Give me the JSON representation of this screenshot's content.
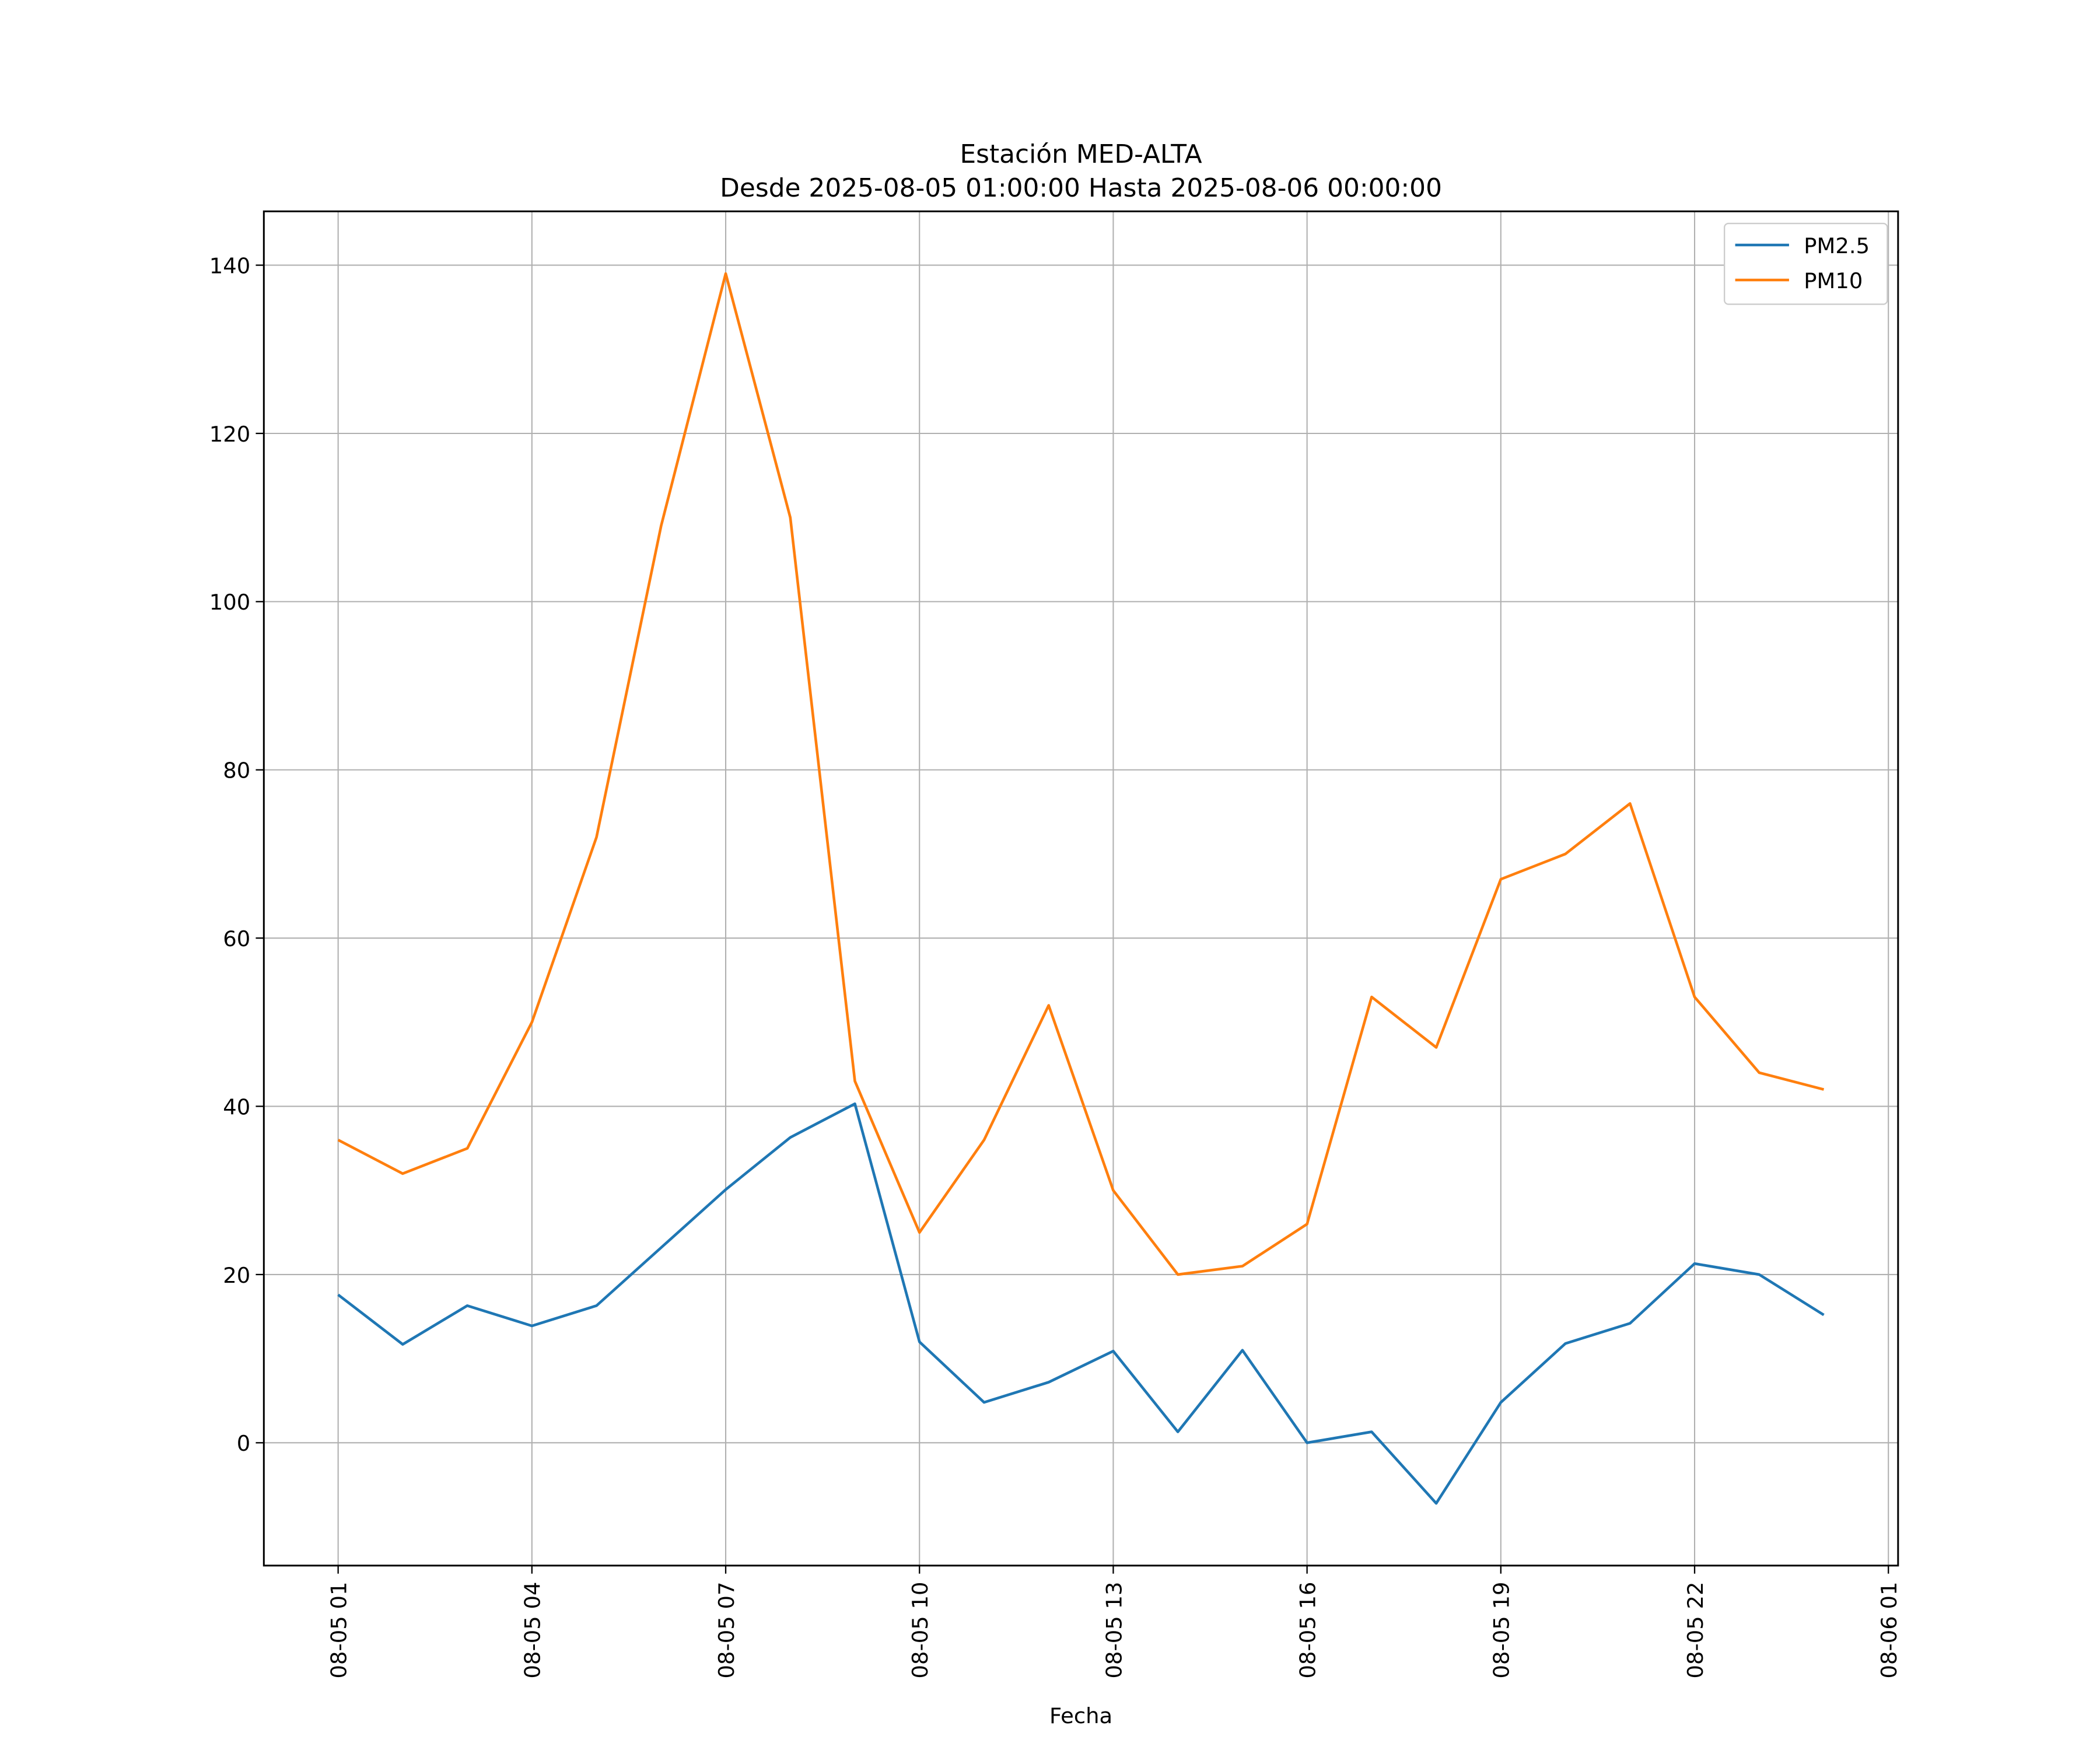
{
  "chart_data": {
    "type": "line",
    "title": "Estación MED-ALTA",
    "subtitle": "Desde 2025-08-05 01:00:00 Hasta 2025-08-06 00:00:00",
    "xlabel": "Fecha",
    "ylabel": "",
    "x": [
      "2025-08-05 01:00",
      "2025-08-05 02:00",
      "2025-08-05 03:00",
      "2025-08-05 04:00",
      "2025-08-05 05:00",
      "2025-08-05 06:00",
      "2025-08-05 07:00",
      "2025-08-05 08:00",
      "2025-08-05 09:00",
      "2025-08-05 10:00",
      "2025-08-05 11:00",
      "2025-08-05 12:00",
      "2025-08-05 13:00",
      "2025-08-05 14:00",
      "2025-08-05 15:00",
      "2025-08-05 16:00",
      "2025-08-05 17:00",
      "2025-08-05 18:00",
      "2025-08-05 19:00",
      "2025-08-05 20:00",
      "2025-08-05 21:00",
      "2025-08-05 22:00",
      "2025-08-05 23:00",
      "2025-08-06 00:00"
    ],
    "series": [
      {
        "name": "PM2.5",
        "color": "#1f77b4",
        "values": [
          17.6,
          11.7,
          16.3,
          13.9,
          16.3,
          23.2,
          30.1,
          36.3,
          40.3,
          12.0,
          4.8,
          7.2,
          10.9,
          1.3,
          11.0,
          0.0,
          1.3,
          -7.2,
          4.8,
          11.8,
          14.2,
          21.3,
          20.0,
          15.2
        ]
      },
      {
        "name": "PM10",
        "color": "#ff7f0e",
        "values": [
          36,
          32,
          35,
          50,
          72,
          109,
          139,
          110,
          43,
          25,
          36,
          52,
          30,
          20,
          21,
          26,
          53,
          47,
          67,
          70,
          76,
          53,
          44,
          42
        ]
      }
    ],
    "xticks": [
      "08-05 01",
      "08-05 04",
      "08-05 07",
      "08-05 10",
      "08-05 13",
      "08-05 16",
      "08-05 19",
      "08-05 22",
      "08-06 01"
    ],
    "yticks": [
      "0",
      "20",
      "40",
      "60",
      "80",
      "100",
      "120",
      "140"
    ],
    "xlim_hours_from_start": [
      -1.15,
      24.15
    ],
    "ylim": [
      -14.6,
      146.4
    ],
    "grid": true,
    "legend_position": "top-right"
  }
}
